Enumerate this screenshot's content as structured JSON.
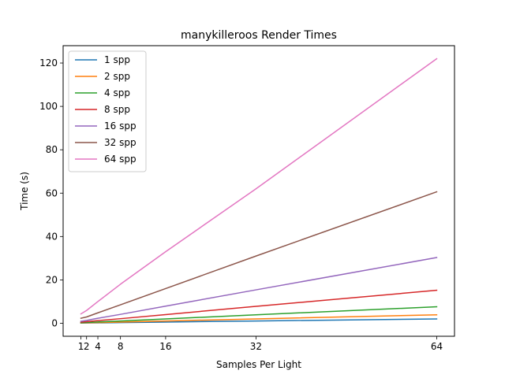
{
  "chart_data": {
    "type": "line",
    "title": "manykilleroos Render Times",
    "xlabel": "Samples Per Light",
    "ylabel": "Time (s)",
    "xlim": [
      -2.15,
      67.15
    ],
    "ylim": [
      -6.0,
      128.0
    ],
    "xticks": [
      1,
      2,
      4,
      8,
      16,
      32,
      64
    ],
    "yticks": [
      0,
      20,
      40,
      60,
      80,
      100,
      120
    ],
    "grid": false,
    "legend_position": "top-left",
    "x": [
      1,
      2,
      4,
      8,
      16,
      32,
      64
    ],
    "series": [
      {
        "name": "1 spp",
        "color": "#1f77b4",
        "values": [
          0.1,
          0.12,
          0.18,
          0.3,
          0.55,
          1.05,
          2.0
        ]
      },
      {
        "name": "2 spp",
        "color": "#ff7f0e",
        "values": [
          0.15,
          0.2,
          0.3,
          0.55,
          1.05,
          2.0,
          3.9
        ]
      },
      {
        "name": "4 spp",
        "color": "#2ca02c",
        "values": [
          0.25,
          0.35,
          0.6,
          1.05,
          2.0,
          3.9,
          7.6
        ]
      },
      {
        "name": "8 spp",
        "color": "#d62728",
        "values": [
          0.5,
          0.7,
          1.2,
          2.1,
          4.0,
          7.8,
          15.2
        ]
      },
      {
        "name": "16 spp",
        "color": "#9467bd",
        "values": [
          0.9,
          1.3,
          2.3,
          4.1,
          7.9,
          15.4,
          30.3
        ]
      },
      {
        "name": "32 spp",
        "color": "#8c564b",
        "values": [
          2.3,
          2.9,
          4.8,
          8.5,
          16.0,
          31.0,
          60.6
        ]
      },
      {
        "name": "64 spp",
        "color": "#e377c2",
        "values": [
          4.3,
          5.9,
          10.0,
          18.0,
          33.0,
          62.0,
          122.0
        ]
      }
    ]
  }
}
